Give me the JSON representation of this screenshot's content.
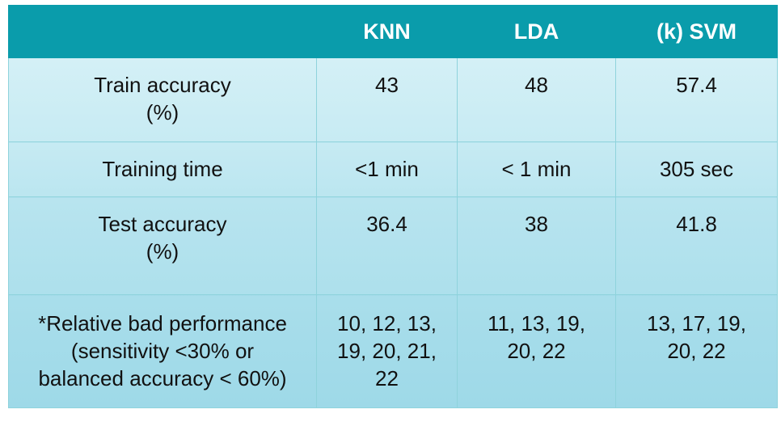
{
  "table": {
    "headers": [
      "",
      "KNN",
      "LDA",
      "(k) SVM"
    ],
    "rows": [
      {
        "label": [
          "Train accuracy",
          "(%)"
        ],
        "knn": "43",
        "lda": "48",
        "svm": "57.4"
      },
      {
        "label": [
          "Training time"
        ],
        "knn": "<1 min",
        "lda": "< 1 min",
        "svm": "305 sec"
      },
      {
        "label": [
          "Test accuracy",
          "(%)"
        ],
        "knn": "36.4",
        "lda": "38",
        "svm": "41.8"
      },
      {
        "label": [
          "*Relative bad performance",
          "(sensitivity <30% or",
          "balanced accuracy < 60%)"
        ],
        "knn": [
          "10, 12, 13,",
          "19, 20, 21,",
          "22"
        ],
        "lda": [
          "11, 13, 19,",
          "20, 22"
        ],
        "svm": [
          "13, 17, 19,",
          "20, 22"
        ]
      }
    ]
  },
  "colors": {
    "header_bg": "#0a9cab",
    "header_text": "#ffffff",
    "body_bg_light": "#d4f0f6",
    "body_bg_dark": "#9ed9e8",
    "border": "#8fd3dc"
  }
}
